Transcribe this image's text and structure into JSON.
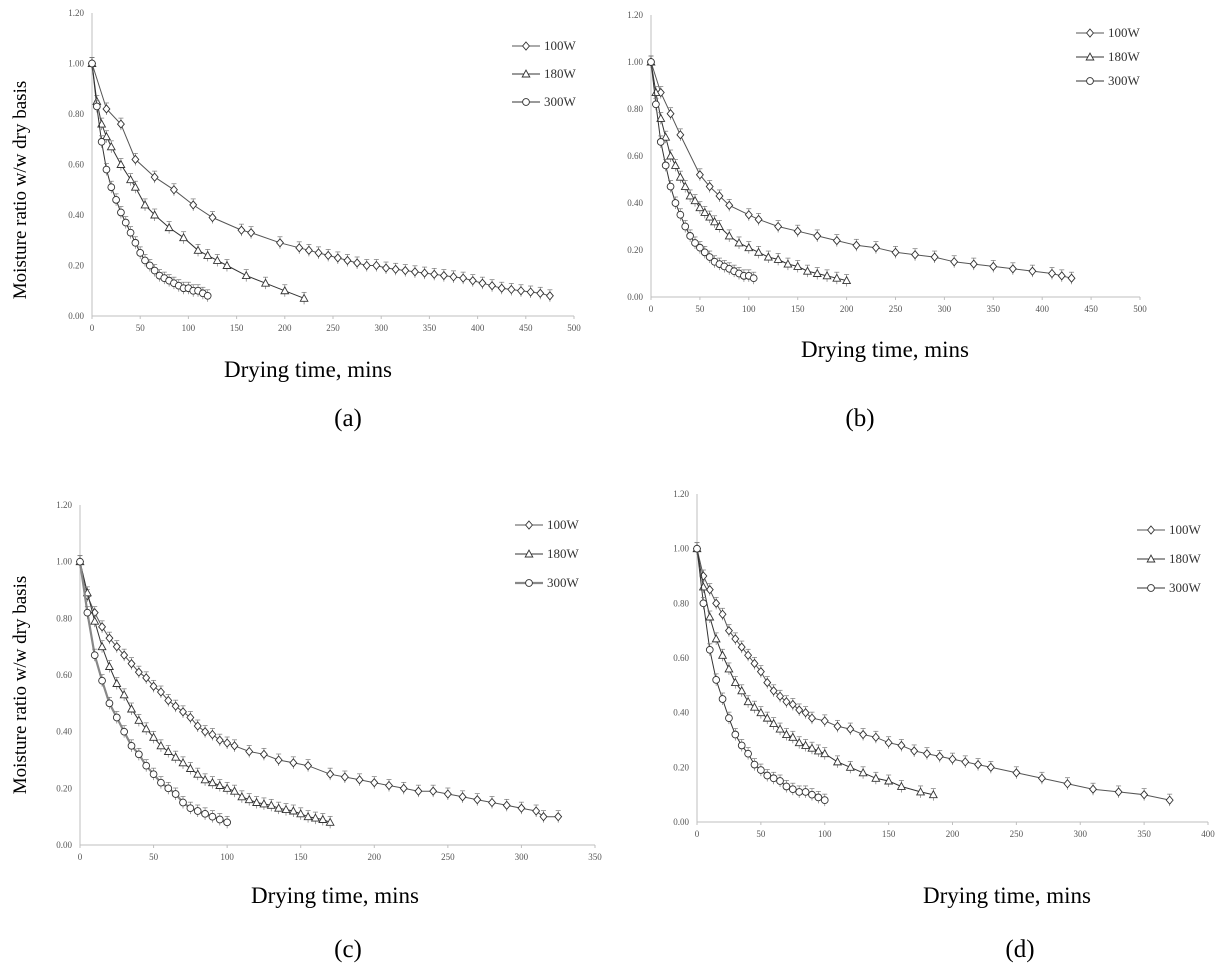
{
  "chart_data": [
    {
      "type": "line",
      "caption": "(a)",
      "xlabel": "Drying time, mins",
      "ylabel": "Moisture ratio w/w dry basis",
      "xlim": [
        0,
        500
      ],
      "ylim": [
        0,
        1.2
      ],
      "x_ticks": [
        "0",
        "50",
        "100",
        "150",
        "200",
        "250",
        "300",
        "350",
        "400",
        "450",
        "500"
      ],
      "y_ticks": [
        "0.00",
        "0.20",
        "0.40",
        "0.60",
        "0.80",
        "1.00",
        "1.20"
      ],
      "grid": false,
      "legend": "top-right",
      "series": [
        {
          "name": "100W",
          "marker": "diamond",
          "color": "#555555",
          "x": [
            0,
            15,
            30,
            45,
            65,
            85,
            105,
            125,
            155,
            165,
            195,
            215,
            225,
            235,
            245,
            255,
            265,
            275,
            285,
            295,
            305,
            315,
            325,
            335,
            345,
            355,
            365,
            375,
            385,
            395,
            405,
            415,
            425,
            435,
            445,
            455,
            465,
            475
          ],
          "y": [
            1.0,
            0.82,
            0.76,
            0.62,
            0.55,
            0.5,
            0.44,
            0.39,
            0.34,
            0.33,
            0.29,
            0.27,
            0.26,
            0.25,
            0.24,
            0.23,
            0.22,
            0.21,
            0.2,
            0.2,
            0.19,
            0.185,
            0.18,
            0.175,
            0.17,
            0.165,
            0.16,
            0.155,
            0.15,
            0.14,
            0.13,
            0.12,
            0.11,
            0.105,
            0.1,
            0.095,
            0.09,
            0.08
          ]
        },
        {
          "name": "180W",
          "marker": "triangle",
          "color": "#333333",
          "x": [
            0,
            5,
            10,
            15,
            20,
            30,
            40,
            45,
            55,
            65,
            80,
            95,
            110,
            120,
            130,
            140,
            160,
            180,
            200,
            220
          ],
          "y": [
            1.0,
            0.85,
            0.76,
            0.71,
            0.67,
            0.6,
            0.54,
            0.51,
            0.44,
            0.4,
            0.35,
            0.31,
            0.26,
            0.24,
            0.22,
            0.2,
            0.16,
            0.13,
            0.1,
            0.07
          ]
        },
        {
          "name": "300W",
          "marker": "circle",
          "color": "#333333",
          "x": [
            0,
            5,
            10,
            15,
            20,
            25,
            30,
            35,
            40,
            45,
            50,
            55,
            60,
            65,
            70,
            75,
            80,
            85,
            90,
            95,
            100,
            105,
            110,
            115,
            120
          ],
          "y": [
            1.0,
            0.83,
            0.69,
            0.58,
            0.51,
            0.46,
            0.41,
            0.37,
            0.33,
            0.29,
            0.25,
            0.22,
            0.2,
            0.18,
            0.16,
            0.15,
            0.14,
            0.13,
            0.12,
            0.11,
            0.11,
            0.1,
            0.1,
            0.09,
            0.08
          ]
        }
      ]
    },
    {
      "type": "line",
      "caption": "(b)",
      "xlabel": "Drying time, mins",
      "ylabel": "",
      "xlim": [
        0,
        500
      ],
      "ylim": [
        0,
        1.2
      ],
      "x_ticks": [
        "0",
        "50",
        "100",
        "150",
        "200",
        "250",
        "300",
        "350",
        "400",
        "450",
        "500"
      ],
      "y_ticks": [
        "0.00",
        "0.20",
        "0.40",
        "0.60",
        "0.80",
        "1.00",
        "1.20"
      ],
      "grid": false,
      "legend": "top-right",
      "series": [
        {
          "name": "100W",
          "marker": "diamond",
          "color": "#555555",
          "x": [
            0,
            10,
            20,
            30,
            50,
            60,
            70,
            80,
            100,
            110,
            130,
            150,
            170,
            190,
            210,
            230,
            250,
            270,
            290,
            310,
            330,
            350,
            370,
            390,
            410,
            420,
            430
          ],
          "y": [
            1.0,
            0.87,
            0.78,
            0.69,
            0.52,
            0.47,
            0.43,
            0.39,
            0.35,
            0.33,
            0.3,
            0.28,
            0.26,
            0.24,
            0.22,
            0.21,
            0.19,
            0.18,
            0.17,
            0.15,
            0.14,
            0.13,
            0.12,
            0.11,
            0.1,
            0.09,
            0.08
          ]
        },
        {
          "name": "180W",
          "marker": "triangle",
          "color": "#333333",
          "x": [
            0,
            5,
            10,
            15,
            20,
            25,
            30,
            35,
            40,
            45,
            50,
            55,
            60,
            65,
            70,
            80,
            90,
            100,
            110,
            120,
            130,
            140,
            150,
            160,
            170,
            180,
            190,
            200
          ],
          "y": [
            1.0,
            0.87,
            0.76,
            0.68,
            0.6,
            0.56,
            0.51,
            0.47,
            0.43,
            0.41,
            0.38,
            0.36,
            0.34,
            0.32,
            0.3,
            0.26,
            0.23,
            0.21,
            0.19,
            0.17,
            0.16,
            0.14,
            0.13,
            0.11,
            0.1,
            0.09,
            0.08,
            0.07
          ]
        },
        {
          "name": "300W",
          "marker": "circle",
          "color": "#333333",
          "x": [
            0,
            5,
            10,
            15,
            20,
            25,
            30,
            35,
            40,
            45,
            50,
            55,
            60,
            65,
            70,
            75,
            80,
            85,
            90,
            95,
            100,
            105
          ],
          "y": [
            1.0,
            0.82,
            0.66,
            0.56,
            0.47,
            0.4,
            0.35,
            0.3,
            0.26,
            0.23,
            0.21,
            0.19,
            0.17,
            0.15,
            0.14,
            0.13,
            0.12,
            0.11,
            0.1,
            0.09,
            0.09,
            0.08
          ]
        }
      ]
    },
    {
      "type": "line",
      "caption": "(c)",
      "xlabel": "Drying time, mins",
      "ylabel": "Moisture ratio w/w dry basis",
      "xlim": [
        0,
        350
      ],
      "ylim": [
        0,
        1.2
      ],
      "x_ticks": [
        "0",
        "50",
        "100",
        "150",
        "200",
        "250",
        "300",
        "350"
      ],
      "y_ticks": [
        "0.00",
        "0.20",
        "0.40",
        "0.60",
        "0.80",
        "1.00",
        "1.20"
      ],
      "grid": false,
      "legend": "top-right",
      "series": [
        {
          "name": "100W",
          "marker": "diamond",
          "color": "#555555",
          "x": [
            0,
            5,
            10,
            15,
            20,
            25,
            30,
            35,
            40,
            45,
            50,
            55,
            60,
            65,
            70,
            75,
            80,
            85,
            90,
            95,
            100,
            105,
            115,
            125,
            135,
            145,
            155,
            170,
            180,
            190,
            200,
            210,
            220,
            230,
            240,
            250,
            260,
            270,
            280,
            290,
            300,
            310,
            315,
            325
          ],
          "y": [
            1.0,
            0.88,
            0.82,
            0.77,
            0.73,
            0.7,
            0.67,
            0.64,
            0.61,
            0.59,
            0.56,
            0.54,
            0.51,
            0.49,
            0.47,
            0.45,
            0.42,
            0.4,
            0.39,
            0.37,
            0.36,
            0.35,
            0.33,
            0.32,
            0.3,
            0.29,
            0.28,
            0.25,
            0.24,
            0.23,
            0.22,
            0.21,
            0.2,
            0.19,
            0.19,
            0.18,
            0.17,
            0.16,
            0.15,
            0.14,
            0.13,
            0.12,
            0.1,
            0.1
          ]
        },
        {
          "name": "180W",
          "marker": "triangle",
          "color": "#333333",
          "x": [
            0,
            5,
            10,
            15,
            20,
            25,
            30,
            35,
            40,
            45,
            50,
            55,
            60,
            65,
            70,
            75,
            80,
            85,
            90,
            95,
            100,
            105,
            110,
            115,
            120,
            125,
            130,
            135,
            140,
            145,
            150,
            155,
            160,
            165,
            170
          ],
          "y": [
            1.0,
            0.89,
            0.79,
            0.7,
            0.63,
            0.57,
            0.53,
            0.48,
            0.44,
            0.41,
            0.38,
            0.35,
            0.33,
            0.31,
            0.29,
            0.27,
            0.25,
            0.23,
            0.22,
            0.21,
            0.2,
            0.19,
            0.17,
            0.16,
            0.15,
            0.145,
            0.14,
            0.13,
            0.125,
            0.12,
            0.11,
            0.1,
            0.095,
            0.09,
            0.08
          ]
        },
        {
          "name": "300W",
          "marker": "circle",
          "color": "#888888",
          "x": [
            0,
            5,
            10,
            15,
            20,
            25,
            30,
            35,
            40,
            45,
            50,
            55,
            60,
            65,
            70,
            75,
            80,
            85,
            90,
            95,
            100
          ],
          "y": [
            1.0,
            0.82,
            0.67,
            0.58,
            0.5,
            0.45,
            0.4,
            0.35,
            0.32,
            0.28,
            0.25,
            0.22,
            0.2,
            0.18,
            0.15,
            0.13,
            0.12,
            0.11,
            0.1,
            0.09,
            0.08
          ]
        }
      ]
    },
    {
      "type": "line",
      "caption": "(d)",
      "xlabel": "Drying time, mins",
      "ylabel": "",
      "xlim": [
        0,
        400
      ],
      "ylim": [
        0,
        1.2
      ],
      "x_ticks": [
        "0",
        "50",
        "100",
        "150",
        "200",
        "250",
        "300",
        "350",
        "400"
      ],
      "y_ticks": [
        "0.00",
        "0.20",
        "0.40",
        "0.60",
        "0.80",
        "1.00",
        "1.20"
      ],
      "grid": false,
      "legend": "top-right",
      "series": [
        {
          "name": "100W",
          "marker": "diamond",
          "color": "#555555",
          "x": [
            0,
            5,
            10,
            15,
            20,
            25,
            30,
            35,
            40,
            45,
            50,
            55,
            60,
            65,
            70,
            75,
            80,
            85,
            90,
            100,
            110,
            120,
            130,
            140,
            150,
            160,
            170,
            180,
            190,
            200,
            210,
            220,
            230,
            250,
            270,
            290,
            310,
            330,
            350,
            370
          ],
          "y": [
            1.0,
            0.9,
            0.85,
            0.8,
            0.76,
            0.7,
            0.67,
            0.64,
            0.61,
            0.58,
            0.55,
            0.51,
            0.48,
            0.46,
            0.44,
            0.43,
            0.41,
            0.4,
            0.38,
            0.37,
            0.35,
            0.34,
            0.32,
            0.31,
            0.29,
            0.28,
            0.26,
            0.25,
            0.24,
            0.23,
            0.22,
            0.21,
            0.2,
            0.18,
            0.16,
            0.14,
            0.12,
            0.11,
            0.1,
            0.08
          ]
        },
        {
          "name": "180W",
          "marker": "triangle",
          "color": "#333333",
          "x": [
            0,
            5,
            10,
            15,
            20,
            25,
            30,
            35,
            40,
            45,
            50,
            55,
            60,
            65,
            70,
            75,
            80,
            85,
            90,
            95,
            100,
            110,
            120,
            130,
            140,
            150,
            160,
            175,
            185
          ],
          "y": [
            1.0,
            0.86,
            0.75,
            0.67,
            0.61,
            0.56,
            0.51,
            0.48,
            0.44,
            0.42,
            0.4,
            0.38,
            0.36,
            0.34,
            0.32,
            0.31,
            0.29,
            0.28,
            0.27,
            0.26,
            0.25,
            0.22,
            0.2,
            0.18,
            0.16,
            0.15,
            0.13,
            0.11,
            0.1
          ]
        },
        {
          "name": "300W",
          "marker": "circle",
          "color": "#333333",
          "x": [
            0,
            5,
            10,
            15,
            20,
            25,
            30,
            35,
            40,
            45,
            50,
            55,
            60,
            65,
            70,
            75,
            80,
            85,
            90,
            95,
            100
          ],
          "y": [
            1.0,
            0.8,
            0.63,
            0.52,
            0.45,
            0.38,
            0.32,
            0.28,
            0.25,
            0.21,
            0.19,
            0.17,
            0.16,
            0.15,
            0.13,
            0.12,
            0.11,
            0.11,
            0.1,
            0.09,
            0.08
          ]
        }
      ]
    }
  ]
}
